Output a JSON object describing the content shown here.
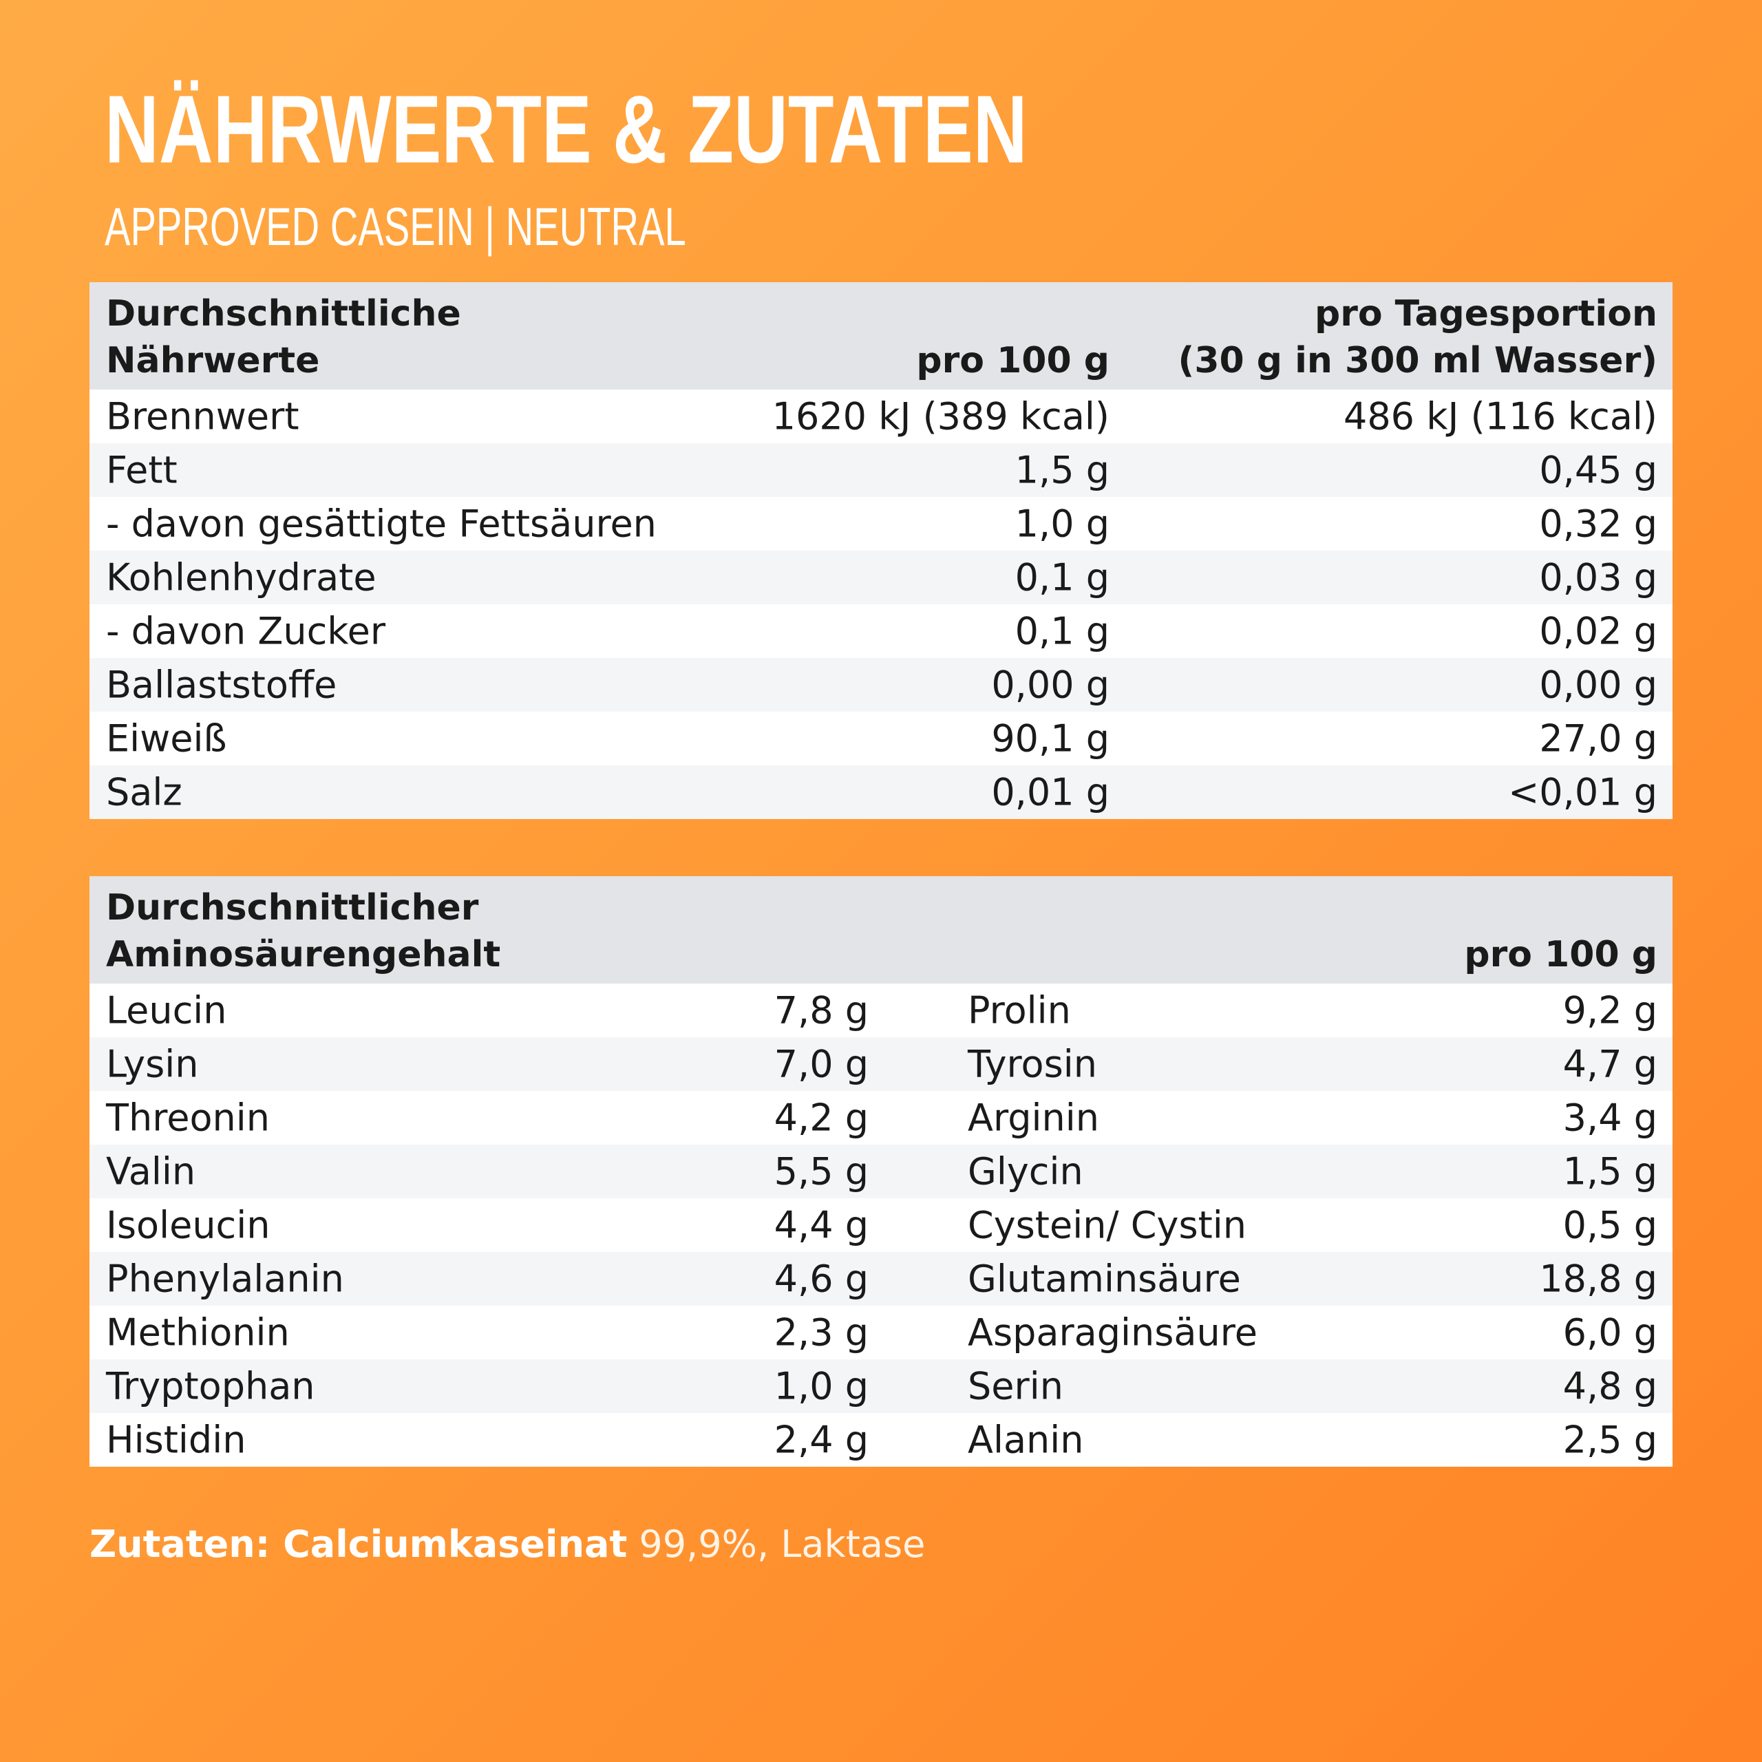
{
  "header": {
    "title": "NÄHRWERTE & ZUTATEN",
    "subtitle": "APPROVED CASEIN | NEUTRAL"
  },
  "nutrition": {
    "head_label_line1": "Durchschnittliche",
    "head_label_line2": "Nährwerte",
    "head_col1": "pro 100 g",
    "head_col2_line1": "pro Tagesportion",
    "head_col2_line2": "(30 g in 300 ml Wasser)",
    "rows": [
      {
        "label": "Brennwert",
        "per100": "1620 kJ (389 kcal)",
        "portion": "486 kJ (116 kcal)"
      },
      {
        "label": "Fett",
        "per100": "1,5 g",
        "portion": "0,45 g"
      },
      {
        "label": "- davon gesättigte Fettsäuren",
        "per100": "1,0 g",
        "portion": "0,32 g"
      },
      {
        "label": "Kohlenhydrate",
        "per100": "0,1 g",
        "portion": "0,03 g"
      },
      {
        "label": "- davon Zucker",
        "per100": "0,1 g",
        "portion": "0,02 g"
      },
      {
        "label": "Ballaststoffe",
        "per100": "0,00 g",
        "portion": "0,00 g"
      },
      {
        "label": "Eiweiß",
        "per100": "90,1 g",
        "portion": "27,0 g"
      },
      {
        "label": "Salz",
        "per100": "0,01 g",
        "portion": "<0,01 g"
      }
    ]
  },
  "amino": {
    "head_label_line1": "Durchschnittlicher",
    "head_label_line2": "Aminosäurengehalt",
    "head_col": "pro 100 g",
    "rows": [
      {
        "a": "Leucin",
        "av": "7,8 g",
        "b": "Prolin",
        "bv": "9,2 g"
      },
      {
        "a": "Lysin",
        "av": "7,0 g",
        "b": "Tyrosin",
        "bv": "4,7 g"
      },
      {
        "a": "Threonin",
        "av": "4,2 g",
        "b": "Arginin",
        "bv": "3,4 g"
      },
      {
        "a": "Valin",
        "av": "5,5 g",
        "b": "Glycin",
        "bv": "1,5 g"
      },
      {
        "a": "Isoleucin",
        "av": "4,4 g",
        "b": "Cystein/ Cystin",
        "bv": "0,5 g"
      },
      {
        "a": "Phenylalanin",
        "av": "4,6 g",
        "b": "Glutaminsäure",
        "bv": "18,8 g"
      },
      {
        "a": "Methionin",
        "av": "2,3 g",
        "b": "Asparaginsäure",
        "bv": "6,0 g"
      },
      {
        "a": "Tryptophan",
        "av": "1,0 g",
        "b": "Serin",
        "bv": "4,8 g"
      },
      {
        "a": "Histidin",
        "av": "2,4 g",
        "b": "Alanin",
        "bv": "2,5 g"
      }
    ]
  },
  "ingredients": {
    "label": "Zutaten: Calciumkaseinat",
    "rest": " 99,9%, Laktase"
  }
}
